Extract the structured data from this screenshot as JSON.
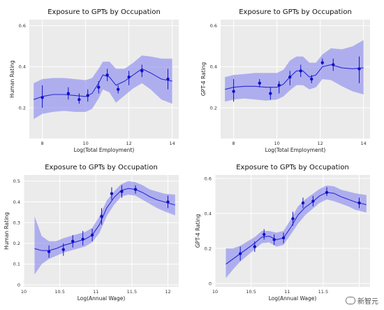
{
  "watermark": "新智元",
  "style": {
    "band_color": "#7b7bf0",
    "line_color": "#2a2ad8",
    "point_color": "#1010c8",
    "panel_bg": "#ebebeb",
    "grid_color": "#ffffff"
  },
  "chart_data": [
    {
      "type": "line",
      "title": "Exposure to GPTs by Occupation",
      "xlabel": "Log(Total Employment)",
      "ylabel": "Human Rating",
      "xlim": [
        7.4,
        14.3
      ],
      "ylim": [
        0.05,
        0.63
      ],
      "xticks": [
        8,
        10,
        12,
        14
      ],
      "yticks": [
        0.2,
        0.4,
        0.6
      ],
      "grid": true,
      "curve": {
        "x": [
          7.6,
          8.0,
          8.5,
          9.0,
          9.5,
          10.0,
          10.3,
          10.6,
          10.8,
          11.1,
          11.4,
          11.8,
          12.2,
          12.6,
          13.0,
          13.5,
          14.0
        ],
        "y": [
          0.24,
          0.255,
          0.265,
          0.265,
          0.26,
          0.255,
          0.27,
          0.32,
          0.36,
          0.35,
          0.31,
          0.33,
          0.36,
          0.39,
          0.37,
          0.34,
          0.33
        ]
      },
      "band_upper": [
        0.32,
        0.34,
        0.345,
        0.345,
        0.34,
        0.335,
        0.345,
        0.39,
        0.425,
        0.425,
        0.39,
        0.39,
        0.42,
        0.455,
        0.45,
        0.44,
        0.44
      ],
      "band_lower": [
        0.145,
        0.17,
        0.18,
        0.185,
        0.18,
        0.18,
        0.195,
        0.245,
        0.29,
        0.275,
        0.225,
        0.26,
        0.295,
        0.32,
        0.29,
        0.24,
        0.22
      ],
      "points": [
        {
          "x": 8.0,
          "y": 0.25,
          "lo": 0.2,
          "hi": 0.31
        },
        {
          "x": 9.2,
          "y": 0.27,
          "lo": 0.24,
          "hi": 0.3
        },
        {
          "x": 9.7,
          "y": 0.24,
          "lo": 0.22,
          "hi": 0.27
        },
        {
          "x": 10.1,
          "y": 0.26,
          "lo": 0.23,
          "hi": 0.29
        },
        {
          "x": 10.6,
          "y": 0.3,
          "lo": 0.27,
          "hi": 0.33
        },
        {
          "x": 11.0,
          "y": 0.36,
          "lo": 0.33,
          "hi": 0.39
        },
        {
          "x": 11.5,
          "y": 0.29,
          "lo": 0.27,
          "hi": 0.31
        },
        {
          "x": 12.0,
          "y": 0.35,
          "lo": 0.31,
          "hi": 0.38
        },
        {
          "x": 12.6,
          "y": 0.38,
          "lo": 0.35,
          "hi": 0.41
        },
        {
          "x": 13.8,
          "y": 0.34,
          "lo": 0.29,
          "hi": 0.39
        }
      ]
    },
    {
      "type": "line",
      "title": "Exposure to GPTs by Occupation",
      "xlabel": "Log(Total Employment)",
      "ylabel": "GPT-4 Rating",
      "xlim": [
        7.4,
        14.3
      ],
      "ylim": [
        0.05,
        0.63
      ],
      "xticks": [
        8,
        10,
        12,
        14
      ],
      "yticks": [
        0.2,
        0.4,
        0.6
      ],
      "grid": true,
      "curve": {
        "x": [
          7.6,
          8.0,
          8.5,
          9.0,
          9.5,
          10.0,
          10.3,
          10.6,
          10.9,
          11.2,
          11.5,
          11.8,
          12.1,
          12.5,
          13.0,
          13.5,
          14.0
        ],
        "y": [
          0.29,
          0.3,
          0.305,
          0.305,
          0.3,
          0.3,
          0.315,
          0.35,
          0.38,
          0.38,
          0.35,
          0.36,
          0.4,
          0.41,
          0.395,
          0.39,
          0.395
        ]
      },
      "band_upper": [
        0.35,
        0.36,
        0.365,
        0.37,
        0.37,
        0.37,
        0.385,
        0.43,
        0.45,
        0.45,
        0.42,
        0.42,
        0.46,
        0.49,
        0.485,
        0.5,
        0.53
      ],
      "band_lower": [
        0.23,
        0.24,
        0.245,
        0.24,
        0.235,
        0.24,
        0.255,
        0.285,
        0.31,
        0.31,
        0.29,
        0.3,
        0.34,
        0.335,
        0.305,
        0.28,
        0.265
      ],
      "points": [
        {
          "x": 8.0,
          "y": 0.28,
          "lo": 0.23,
          "hi": 0.34
        },
        {
          "x": 9.2,
          "y": 0.32,
          "lo": 0.3,
          "hi": 0.34
        },
        {
          "x": 9.7,
          "y": 0.27,
          "lo": 0.24,
          "hi": 0.3
        },
        {
          "x": 10.1,
          "y": 0.31,
          "lo": 0.27,
          "hi": 0.33
        },
        {
          "x": 10.6,
          "y": 0.35,
          "lo": 0.31,
          "hi": 0.38
        },
        {
          "x": 11.1,
          "y": 0.38,
          "lo": 0.35,
          "hi": 0.41
        },
        {
          "x": 11.6,
          "y": 0.34,
          "lo": 0.32,
          "hi": 0.36
        },
        {
          "x": 12.1,
          "y": 0.42,
          "lo": 0.41,
          "hi": 0.44
        },
        {
          "x": 12.6,
          "y": 0.41,
          "lo": 0.38,
          "hi": 0.44
        },
        {
          "x": 13.8,
          "y": 0.39,
          "lo": 0.32,
          "hi": 0.45
        }
      ]
    },
    {
      "type": "line",
      "title": "Exposure to GPTs by Occupation",
      "xlabel": "Log(Annual Wage)",
      "ylabel": "Human Rating",
      "xlim": [
        10.0,
        12.15
      ],
      "ylim": [
        -0.01,
        0.53
      ],
      "xticks": [
        10,
        10.5,
        11,
        11.5,
        12
      ],
      "xticklabels": [
        "10",
        "10.5",
        "11",
        "11.5",
        "12"
      ],
      "yticks": [
        0,
        0.1,
        0.2,
        0.3,
        0.4,
        0.5
      ],
      "grid": true,
      "curve": {
        "x": [
          10.15,
          10.25,
          10.35,
          10.45,
          10.55,
          10.65,
          10.75,
          10.85,
          10.95,
          11.05,
          11.15,
          11.25,
          11.35,
          11.45,
          11.55,
          11.65,
          11.75,
          11.85,
          11.95,
          12.1
        ],
        "y": [
          0.175,
          0.165,
          0.165,
          0.175,
          0.19,
          0.2,
          0.21,
          0.22,
          0.24,
          0.29,
          0.37,
          0.42,
          0.455,
          0.465,
          0.46,
          0.445,
          0.425,
          0.41,
          0.4,
          0.385
        ]
      },
      "band_upper": [
        0.33,
        0.235,
        0.21,
        0.21,
        0.225,
        0.235,
        0.245,
        0.255,
        0.275,
        0.33,
        0.405,
        0.45,
        0.485,
        0.5,
        0.495,
        0.48,
        0.46,
        0.45,
        0.44,
        0.435
      ],
      "band_lower": [
        0.05,
        0.1,
        0.125,
        0.14,
        0.155,
        0.165,
        0.175,
        0.185,
        0.205,
        0.25,
        0.33,
        0.385,
        0.425,
        0.435,
        0.43,
        0.41,
        0.39,
        0.37,
        0.355,
        0.335
      ],
      "points": [
        {
          "x": 10.35,
          "y": 0.16,
          "lo": 0.13,
          "hi": 0.19
        },
        {
          "x": 10.55,
          "y": 0.17,
          "lo": 0.14,
          "hi": 0.2
        },
        {
          "x": 10.68,
          "y": 0.21,
          "lo": 0.18,
          "hi": 0.24
        },
        {
          "x": 10.82,
          "y": 0.22,
          "lo": 0.19,
          "hi": 0.26
        },
        {
          "x": 10.95,
          "y": 0.24,
          "lo": 0.21,
          "hi": 0.27
        },
        {
          "x": 11.08,
          "y": 0.33,
          "lo": 0.29,
          "hi": 0.37
        },
        {
          "x": 11.22,
          "y": 0.44,
          "lo": 0.41,
          "hi": 0.47
        },
        {
          "x": 11.36,
          "y": 0.45,
          "lo": 0.42,
          "hi": 0.48
        },
        {
          "x": 11.55,
          "y": 0.46,
          "lo": 0.44,
          "hi": 0.48
        },
        {
          "x": 12.0,
          "y": 0.4,
          "lo": 0.37,
          "hi": 0.43
        }
      ]
    },
    {
      "type": "line",
      "title": "Exposure to GPTs by Occupation",
      "xlabel": "Log(Annual Wage)",
      "ylabel": "GPT-4 Rating",
      "xlim": [
        10.0,
        12.15
      ],
      "ylim": [
        -0.02,
        0.62
      ],
      "xticks": [
        10,
        10.5,
        11,
        11.5,
        12
      ],
      "xticklabels": [
        "10",
        "10.5",
        "11",
        "11.5",
        ""
      ],
      "yticks": [
        0,
        0.2,
        0.4,
        0.6
      ],
      "grid": true,
      "curve": {
        "x": [
          10.15,
          10.25,
          10.35,
          10.45,
          10.55,
          10.65,
          10.75,
          10.85,
          10.95,
          11.05,
          11.15,
          11.25,
          11.35,
          11.45,
          11.55,
          11.65,
          11.75,
          11.85,
          11.95,
          12.1
        ],
        "y": [
          0.11,
          0.14,
          0.17,
          0.2,
          0.23,
          0.265,
          0.27,
          0.25,
          0.26,
          0.32,
          0.39,
          0.435,
          0.465,
          0.5,
          0.52,
          0.515,
          0.495,
          0.48,
          0.465,
          0.45
        ]
      },
      "band_upper": [
        0.2,
        0.2,
        0.215,
        0.24,
        0.265,
        0.3,
        0.3,
        0.29,
        0.3,
        0.365,
        0.44,
        0.48,
        0.51,
        0.54,
        0.56,
        0.555,
        0.535,
        0.525,
        0.515,
        0.505
      ],
      "band_lower": [
        0.03,
        0.08,
        0.125,
        0.16,
        0.195,
        0.23,
        0.235,
        0.21,
        0.22,
        0.28,
        0.34,
        0.39,
        0.425,
        0.46,
        0.48,
        0.47,
        0.455,
        0.44,
        0.42,
        0.405
      ],
      "points": [
        {
          "x": 10.35,
          "y": 0.17,
          "lo": 0.13,
          "hi": 0.21
        },
        {
          "x": 10.55,
          "y": 0.21,
          "lo": 0.18,
          "hi": 0.24
        },
        {
          "x": 10.68,
          "y": 0.28,
          "lo": 0.25,
          "hi": 0.31
        },
        {
          "x": 10.82,
          "y": 0.25,
          "lo": 0.22,
          "hi": 0.28
        },
        {
          "x": 10.95,
          "y": 0.26,
          "lo": 0.23,
          "hi": 0.29
        },
        {
          "x": 11.08,
          "y": 0.37,
          "lo": 0.33,
          "hi": 0.41
        },
        {
          "x": 11.22,
          "y": 0.46,
          "lo": 0.43,
          "hi": 0.49
        },
        {
          "x": 11.36,
          "y": 0.47,
          "lo": 0.44,
          "hi": 0.5
        },
        {
          "x": 11.55,
          "y": 0.52,
          "lo": 0.5,
          "hi": 0.55
        },
        {
          "x": 12.0,
          "y": 0.46,
          "lo": 0.43,
          "hi": 0.49
        }
      ]
    }
  ]
}
